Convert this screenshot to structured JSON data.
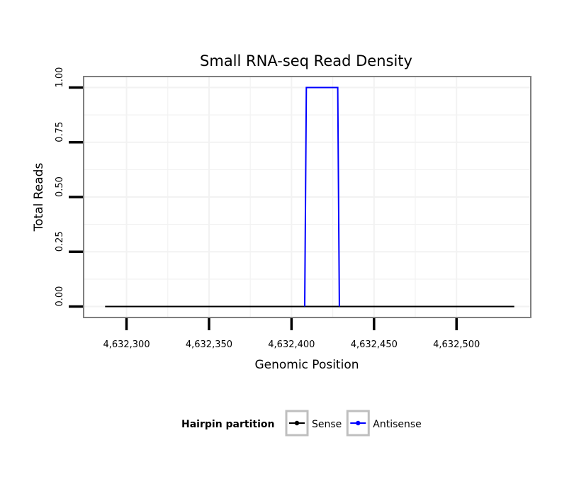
{
  "chart_data": {
    "type": "line",
    "title": "Small RNA-seq Read Density",
    "xlabel": "Genomic Position",
    "ylabel": "Total Reads",
    "xlim": [
      4632274,
      4632545
    ],
    "ylim": [
      -0.05,
      1.05
    ],
    "x_ticks": [
      4632300,
      4632350,
      4632400,
      4632450,
      4632500
    ],
    "x_tick_labels": [
      "4,632,300",
      "4,632,350",
      "4,632,400",
      "4,632,450",
      "4,632,500"
    ],
    "y_ticks": [
      0,
      0.25,
      0.5,
      0.75,
      1.0
    ],
    "y_tick_labels": [
      "0.00",
      "0.25",
      "0.50",
      "0.75",
      "1.00"
    ],
    "grid": true,
    "legend": {
      "title": "Hairpin partition",
      "position": "bottom"
    },
    "series": [
      {
        "name": "Sense",
        "color": "#000000",
        "x": [
          4632287,
          4632535
        ],
        "y": [
          0,
          0
        ]
      },
      {
        "name": "Antisense",
        "color": "#0000ff",
        "x": [
          4632408,
          4632409,
          4632428,
          4632429
        ],
        "y": [
          0,
          1,
          1,
          0
        ]
      }
    ]
  }
}
